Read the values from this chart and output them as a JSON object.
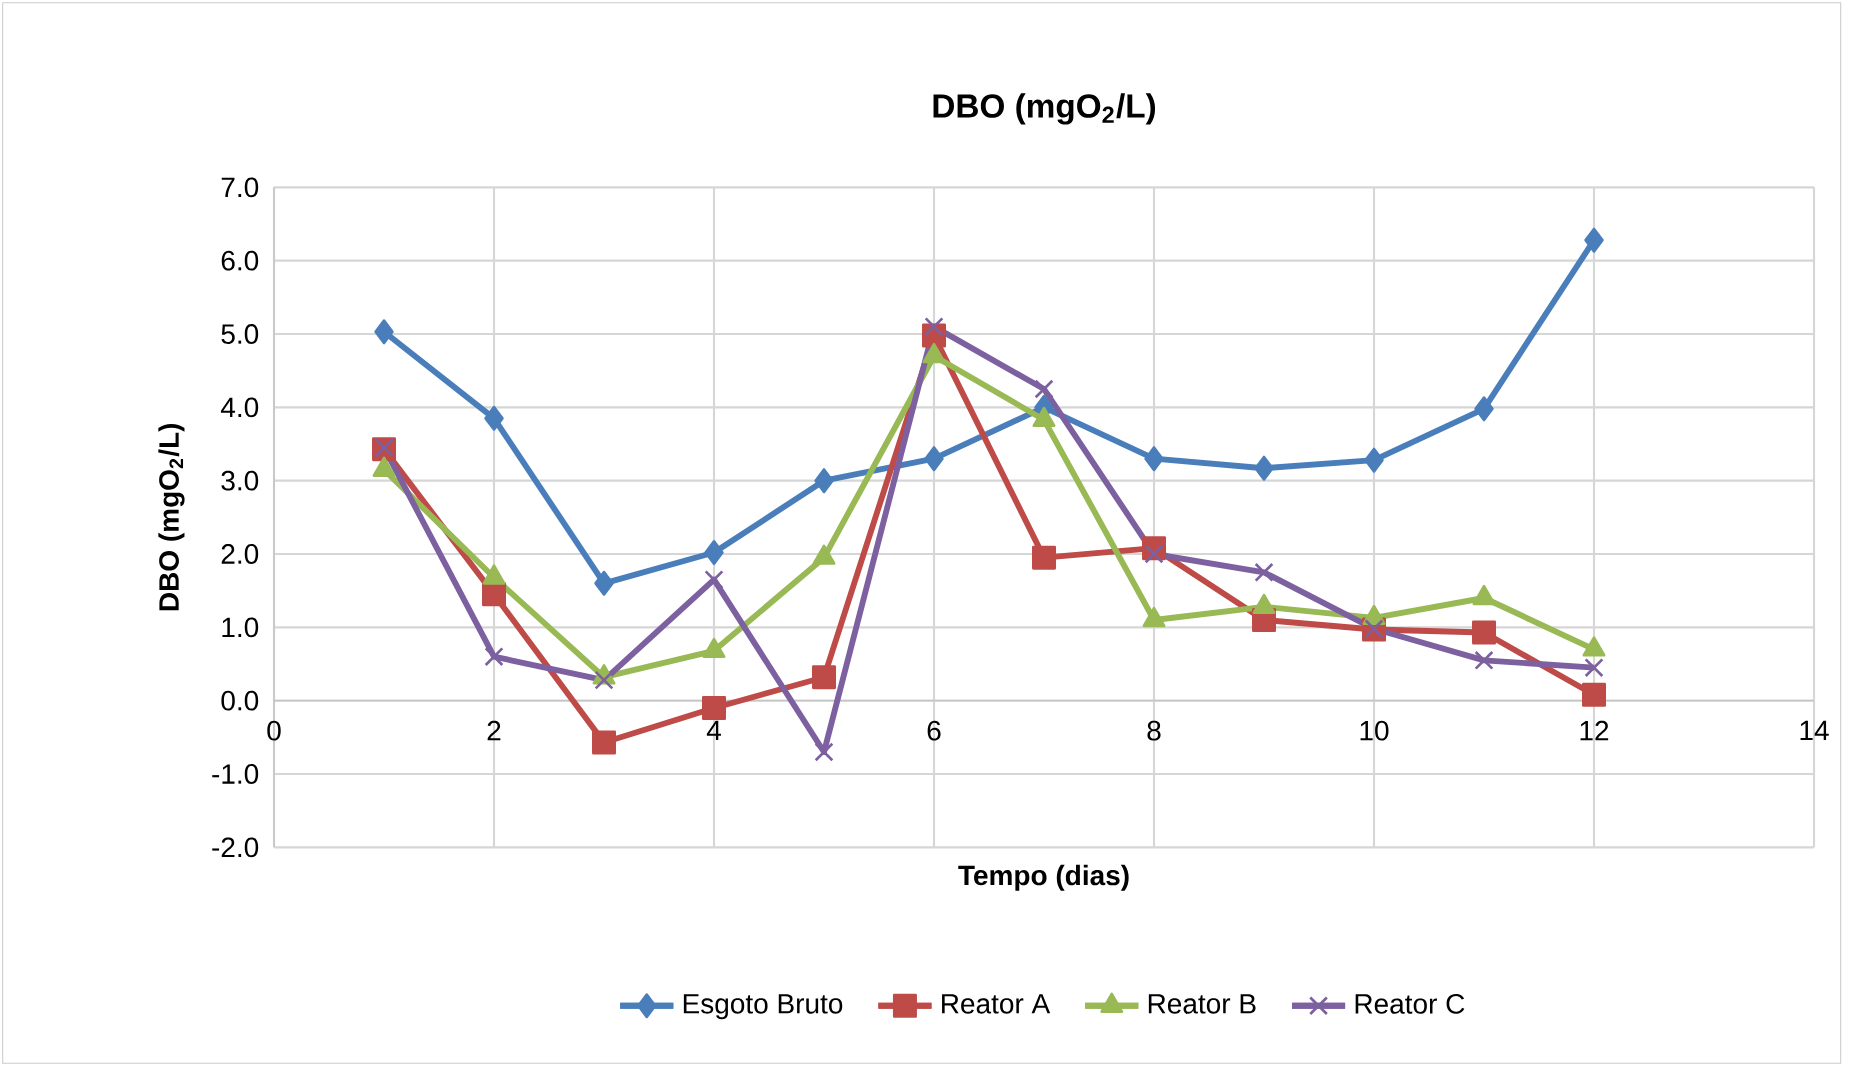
{
  "chart_data": {
    "type": "line",
    "title": "DBO (mgO$_{2}$/L)",
    "xlabel": "Tempo (dias)",
    "ylabel": "DBO (mgO$_{2}$/L)",
    "x": [
      1,
      2,
      3,
      4,
      5,
      6,
      7,
      8,
      9,
      10,
      11,
      12
    ],
    "series": [
      {
        "name": "Esgoto Bruto",
        "color": "#4a7ebb",
        "marker": "diamond",
        "values": [
          5.03,
          3.85,
          1.6,
          2.02,
          3.0,
          3.3,
          4.0,
          3.3,
          3.17,
          3.28,
          3.98,
          6.28
        ]
      },
      {
        "name": "Reator A",
        "color": "#be4b48",
        "marker": "square",
        "values": [
          3.43,
          1.45,
          -0.57,
          -0.1,
          0.32,
          4.98,
          1.95,
          2.08,
          1.1,
          0.97,
          0.93,
          0.08
        ]
      },
      {
        "name": "Reator B",
        "color": "#98b954",
        "marker": "triangle",
        "values": [
          3.15,
          1.68,
          0.32,
          0.68,
          1.95,
          4.7,
          3.83,
          1.1,
          1.28,
          1.13,
          1.4,
          0.7
        ]
      },
      {
        "name": "Reator C",
        "color": "#7d60a0",
        "marker": "cross",
        "values": [
          3.45,
          0.6,
          0.28,
          1.65,
          -0.7,
          5.1,
          4.25,
          2.0,
          1.75,
          0.98,
          0.55,
          0.45
        ]
      }
    ],
    "xlim": [
      0,
      14
    ],
    "xticks": [
      0,
      2,
      4,
      6,
      8,
      10,
      12,
      14
    ],
    "ylim": [
      -2,
      7
    ],
    "yticks": [
      {
        "value": -2,
        "label": "-2.0"
      },
      {
        "value": -1,
        "label": "-1.0"
      },
      {
        "value": 0,
        "label": "0.0"
      },
      {
        "value": 1,
        "label": "1.0"
      },
      {
        "value": 2,
        "label": "2.0"
      },
      {
        "value": 3,
        "label": "3.0"
      },
      {
        "value": 4,
        "label": "4.0"
      },
      {
        "value": 5,
        "label": "5.0"
      },
      {
        "value": 6,
        "label": "6.0"
      },
      {
        "value": 7,
        "label": "7.0"
      }
    ],
    "grid": true,
    "legend": "bottom"
  }
}
